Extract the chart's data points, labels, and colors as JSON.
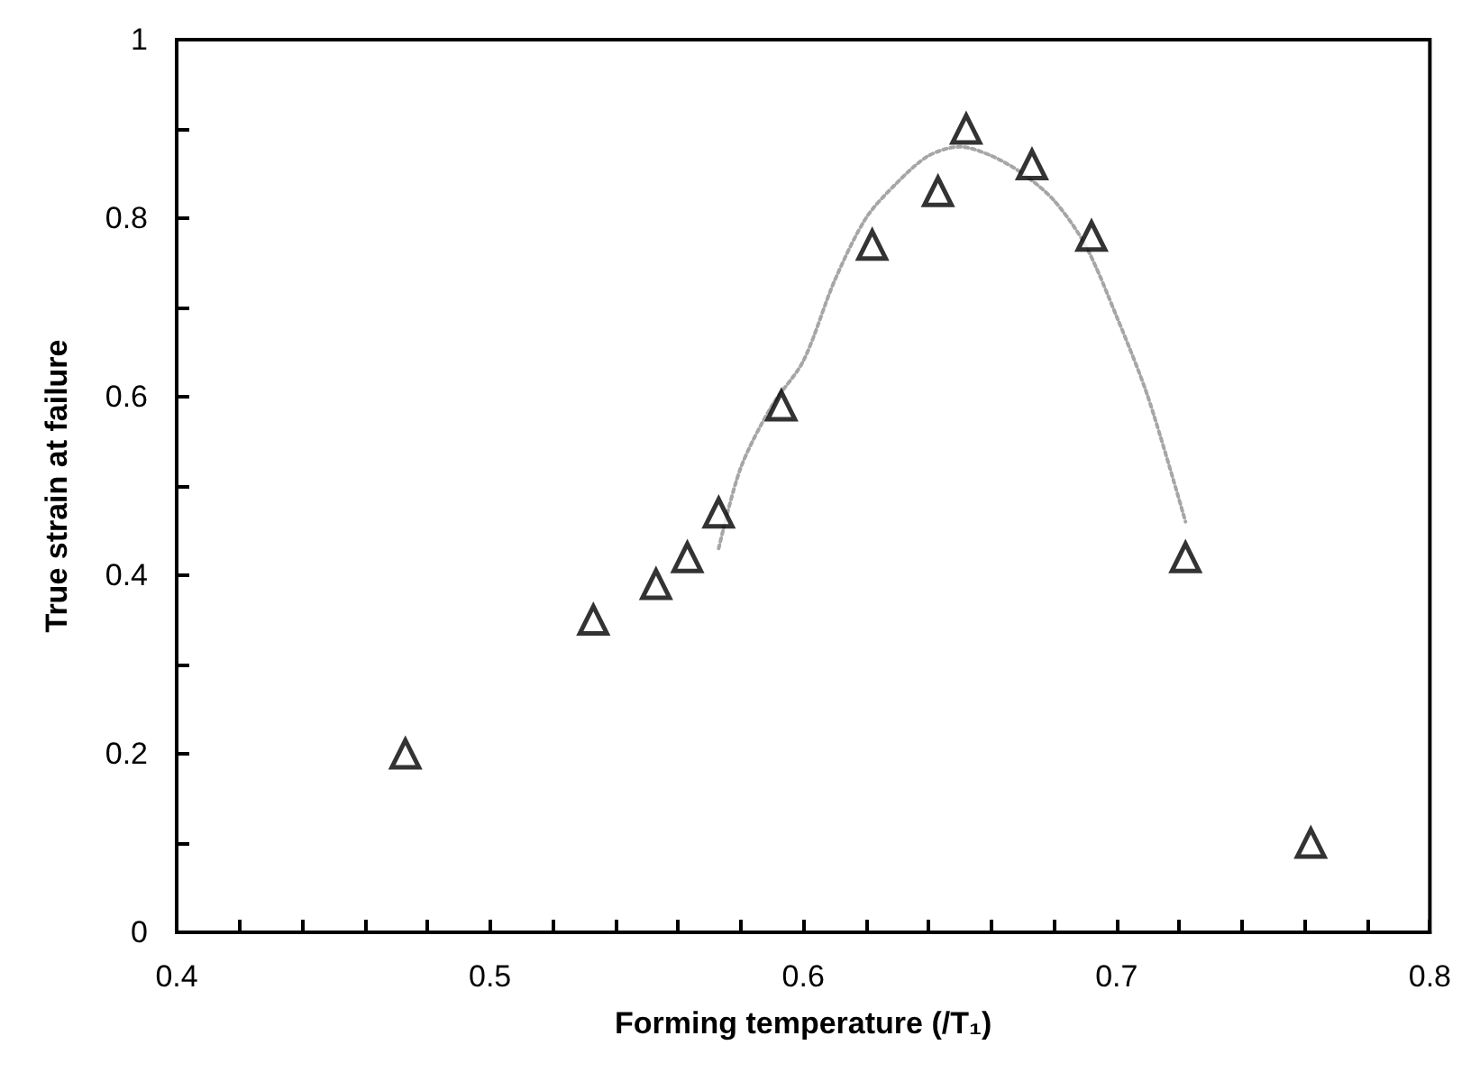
{
  "chart_data": {
    "type": "scatter",
    "xlabel": "Forming temperature (/T₁)",
    "ylabel": "True strain at failure",
    "xlim": [
      0.4,
      0.8
    ],
    "xticks": [
      0.4,
      0.5,
      0.6,
      0.7,
      0.8
    ],
    "ylim": [
      0,
      1
    ],
    "yticks": [
      0,
      0.2,
      0.4,
      0.6,
      0.8,
      1
    ],
    "grid": false,
    "marker": "triangle",
    "series": [
      {
        "color": "#000000",
        "x": [
          0.473,
          0.533,
          0.553,
          0.563,
          0.573,
          0.593,
          0.622,
          0.643,
          0.652,
          0.673,
          0.692,
          0.722,
          0.762
        ],
        "values": [
          0.2,
          0.35,
          0.39,
          0.42,
          0.47,
          0.59,
          0.77,
          0.83,
          0.9,
          0.86,
          0.78,
          0.42,
          0.1
        ]
      },
      {
        "type": "line",
        "color": "#a6a6a6",
        "line_style": "dotted",
        "marker": "none",
        "x": [
          0.573,
          0.58,
          0.59,
          0.6,
          0.61,
          0.62,
          0.63,
          0.64,
          0.65,
          0.66,
          0.67,
          0.68,
          0.69,
          0.7,
          0.71,
          0.722
        ],
        "values": [
          0.43,
          0.52,
          0.59,
          0.64,
          0.73,
          0.8,
          0.84,
          0.87,
          0.88,
          0.87,
          0.85,
          0.82,
          0.77,
          0.69,
          0.6,
          0.46
        ]
      }
    ]
  }
}
